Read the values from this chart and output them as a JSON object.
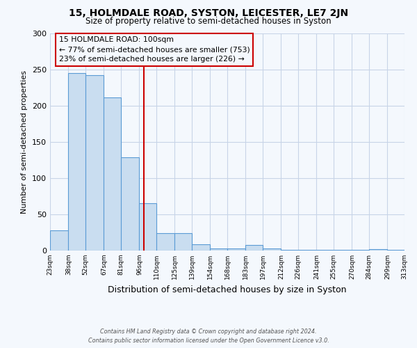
{
  "title": "15, HOLMDALE ROAD, SYSTON, LEICESTER, LE7 2JN",
  "subtitle": "Size of property relative to semi-detached houses in Syston",
  "xlabel": "Distribution of semi-detached houses by size in Syston",
  "ylabel": "Number of semi-detached properties",
  "bin_edges": [
    23,
    38,
    52,
    67,
    81,
    96,
    110,
    125,
    139,
    154,
    168,
    183,
    197,
    212,
    226,
    241,
    255,
    270,
    284,
    299,
    313
  ],
  "bin_counts": [
    28,
    245,
    242,
    211,
    129,
    65,
    24,
    24,
    9,
    3,
    3,
    8,
    3,
    1,
    1,
    1,
    1,
    1,
    2,
    1
  ],
  "property_size": 100,
  "bar_facecolor": "#c9ddf0",
  "bar_edgecolor": "#5b9bd5",
  "vline_color": "#cc0000",
  "annotation_box_edgecolor": "#cc0000",
  "annotation_title": "15 HOLMDALE ROAD: 100sqm",
  "annotation_line1": "← 77% of semi-detached houses are smaller (753)",
  "annotation_line2": "23% of semi-detached houses are larger (226) →",
  "ylim": [
    0,
    300
  ],
  "yticks": [
    0,
    50,
    100,
    150,
    200,
    250,
    300
  ],
  "grid_color": "#c8d4e8",
  "footer1": "Contains HM Land Registry data © Crown copyright and database right 2024.",
  "footer2": "Contains public sector information licensed under the Open Government Licence v3.0.",
  "tick_labels": [
    "23sqm",
    "38sqm",
    "52sqm",
    "67sqm",
    "81sqm",
    "96sqm",
    "110sqm",
    "125sqm",
    "139sqm",
    "154sqm",
    "168sqm",
    "183sqm",
    "197sqm",
    "212sqm",
    "226sqm",
    "241sqm",
    "255sqm",
    "270sqm",
    "284sqm",
    "299sqm",
    "313sqm"
  ],
  "background_color": "#f4f8fd"
}
